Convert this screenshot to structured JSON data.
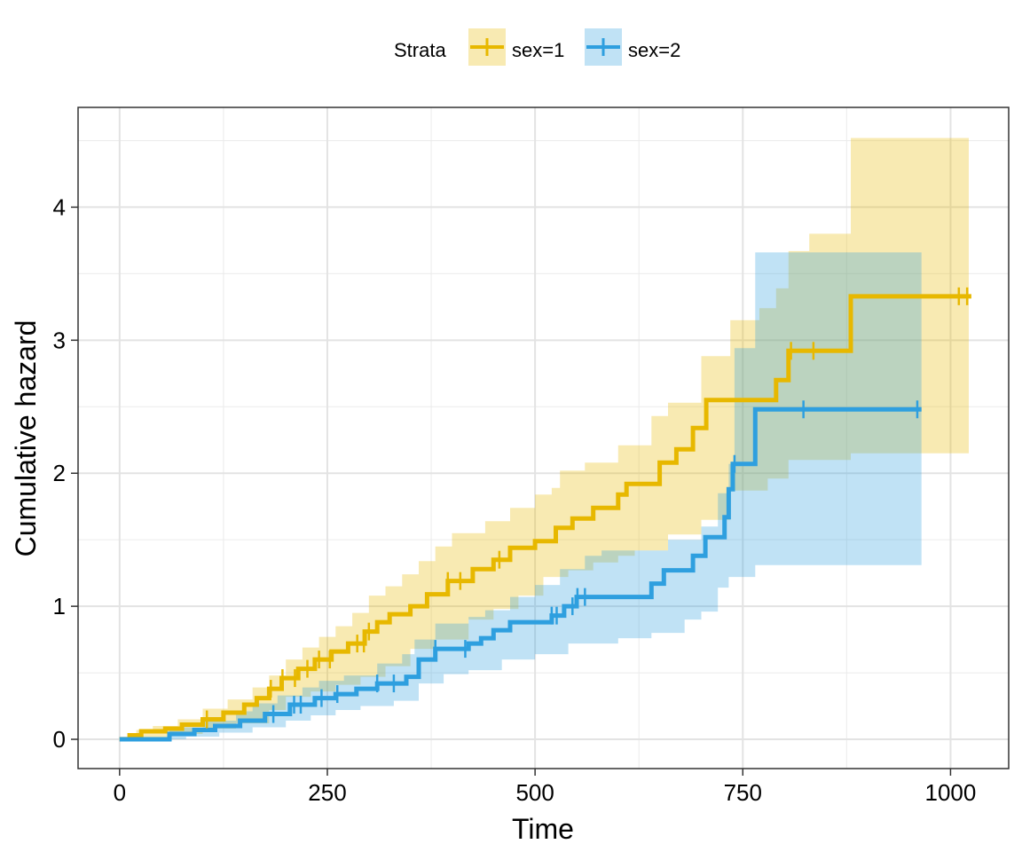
{
  "chart_data": {
    "type": "line",
    "title": "",
    "xlabel": "Time",
    "ylabel": "Cumulative hazard",
    "xlim": [
      -50,
      1070
    ],
    "ylim": [
      -0.22,
      4.75
    ],
    "xticks": [
      0,
      250,
      500,
      750,
      1000
    ],
    "yticks": [
      0,
      1,
      2,
      3,
      4
    ],
    "grid": true,
    "legend": {
      "title": "Strata",
      "position": "top",
      "entries": [
        "sex=1",
        "sex=2"
      ]
    },
    "colors": {
      "sex=1": "#E7B800",
      "sex=2": "#2E9FDF"
    },
    "series": [
      {
        "name": "sex=1",
        "step": [
          [
            0,
            0
          ],
          [
            12,
            0.03
          ],
          [
            26,
            0.06
          ],
          [
            55,
            0.08
          ],
          [
            75,
            0.11
          ],
          [
            100,
            0.15
          ],
          [
            125,
            0.2
          ],
          [
            150,
            0.26
          ],
          [
            165,
            0.31
          ],
          [
            180,
            0.38
          ],
          [
            195,
            0.46
          ],
          [
            215,
            0.53
          ],
          [
            235,
            0.6
          ],
          [
            255,
            0.66
          ],
          [
            275,
            0.72
          ],
          [
            295,
            0.81
          ],
          [
            310,
            0.88
          ],
          [
            325,
            0.94
          ],
          [
            350,
            1.0
          ],
          [
            370,
            1.09
          ],
          [
            395,
            1.19
          ],
          [
            425,
            1.28
          ],
          [
            450,
            1.35
          ],
          [
            470,
            1.44
          ],
          [
            500,
            1.49
          ],
          [
            520,
            1.49
          ],
          [
            525,
            1.59
          ],
          [
            545,
            1.66
          ],
          [
            570,
            1.74
          ],
          [
            600,
            1.84
          ],
          [
            610,
            1.92
          ],
          [
            650,
            2.08
          ],
          [
            670,
            2.18
          ],
          [
            690,
            2.34
          ],
          [
            706,
            2.55
          ],
          [
            735,
            2.55
          ],
          [
            790,
            2.7
          ],
          [
            800,
            2.7
          ],
          [
            805,
            2.92
          ],
          [
            880,
            3.33
          ],
          [
            1025,
            3.33
          ]
        ],
        "ci_upper": [
          [
            0,
            0.02
          ],
          [
            20,
            0.07
          ],
          [
            40,
            0.1
          ],
          [
            70,
            0.15
          ],
          [
            100,
            0.23
          ],
          [
            130,
            0.3
          ],
          [
            160,
            0.39
          ],
          [
            180,
            0.48
          ],
          [
            200,
            0.6
          ],
          [
            220,
            0.69
          ],
          [
            240,
            0.77
          ],
          [
            260,
            0.85
          ],
          [
            280,
            0.95
          ],
          [
            300,
            1.08
          ],
          [
            320,
            1.15
          ],
          [
            340,
            1.24
          ],
          [
            360,
            1.34
          ],
          [
            380,
            1.45
          ],
          [
            400,
            1.55
          ],
          [
            440,
            1.64
          ],
          [
            470,
            1.74
          ],
          [
            500,
            1.84
          ],
          [
            520,
            1.89
          ],
          [
            530,
            2.02
          ],
          [
            560,
            2.08
          ],
          [
            600,
            2.21
          ],
          [
            640,
            2.43
          ],
          [
            660,
            2.53
          ],
          [
            700,
            2.88
          ],
          [
            735,
            3.15
          ],
          [
            770,
            3.24
          ],
          [
            790,
            3.39
          ],
          [
            805,
            3.67
          ],
          [
            830,
            3.8
          ],
          [
            880,
            4.52
          ],
          [
            1022,
            4.52
          ]
        ],
        "ci_lower": [
          [
            0,
            0
          ],
          [
            30,
            0.01
          ],
          [
            60,
            0.04
          ],
          [
            100,
            0.08
          ],
          [
            140,
            0.12
          ],
          [
            180,
            0.22
          ],
          [
            200,
            0.32
          ],
          [
            230,
            0.36
          ],
          [
            260,
            0.41
          ],
          [
            290,
            0.47
          ],
          [
            320,
            0.55
          ],
          [
            350,
            0.68
          ],
          [
            380,
            0.75
          ],
          [
            420,
            0.9
          ],
          [
            450,
            0.98
          ],
          [
            480,
            1.08
          ],
          [
            510,
            1.22
          ],
          [
            540,
            1.27
          ],
          [
            570,
            1.33
          ],
          [
            600,
            1.38
          ],
          [
            620,
            1.42
          ],
          [
            660,
            1.54
          ],
          [
            700,
            1.65
          ],
          [
            735,
            1.87
          ],
          [
            760,
            1.87
          ],
          [
            780,
            1.96
          ],
          [
            800,
            1.96
          ],
          [
            805,
            2.1
          ],
          [
            880,
            2.15
          ],
          [
            1022,
            2.15
          ]
        ],
        "censor_times": [
          105,
          182,
          196,
          211,
          226,
          240,
          253,
          286,
          294,
          300,
          395,
          410,
          457,
          808,
          835,
          1010,
          1020
        ]
      },
      {
        "name": "sex=2",
        "step": [
          [
            0,
            0
          ],
          [
            60,
            0.04
          ],
          [
            90,
            0.07
          ],
          [
            115,
            0.1
          ],
          [
            145,
            0.14
          ],
          [
            175,
            0.19
          ],
          [
            205,
            0.26
          ],
          [
            235,
            0.31
          ],
          [
            260,
            0.34
          ],
          [
            285,
            0.38
          ],
          [
            310,
            0.42
          ],
          [
            345,
            0.47
          ],
          [
            360,
            0.6
          ],
          [
            380,
            0.68
          ],
          [
            420,
            0.72
          ],
          [
            435,
            0.76
          ],
          [
            450,
            0.82
          ],
          [
            470,
            0.88
          ],
          [
            520,
            0.93
          ],
          [
            535,
            1.0
          ],
          [
            550,
            1.07
          ],
          [
            640,
            1.17
          ],
          [
            655,
            1.27
          ],
          [
            690,
            1.38
          ],
          [
            705,
            1.52
          ],
          [
            728,
            1.67
          ],
          [
            733,
            1.88
          ],
          [
            738,
            2.07
          ],
          [
            765,
            2.48
          ],
          [
            965,
            2.48
          ]
        ],
        "ci_upper": [
          [
            0,
            0.01
          ],
          [
            60,
            0.09
          ],
          [
            100,
            0.14
          ],
          [
            140,
            0.21
          ],
          [
            160,
            0.27
          ],
          [
            190,
            0.33
          ],
          [
            220,
            0.39
          ],
          [
            240,
            0.44
          ],
          [
            270,
            0.48
          ],
          [
            310,
            0.57
          ],
          [
            340,
            0.64
          ],
          [
            355,
            0.75
          ],
          [
            380,
            0.87
          ],
          [
            420,
            0.92
          ],
          [
            440,
            0.97
          ],
          [
            470,
            1.07
          ],
          [
            500,
            1.16
          ],
          [
            530,
            1.28
          ],
          [
            560,
            1.38
          ],
          [
            580,
            1.42
          ],
          [
            640,
            1.42
          ],
          [
            660,
            1.5
          ],
          [
            700,
            1.6
          ],
          [
            720,
            1.85
          ],
          [
            733,
            2.07
          ],
          [
            740,
            2.94
          ],
          [
            765,
            3.66
          ],
          [
            965,
            3.66
          ]
        ],
        "ci_lower": [
          [
            0,
            0
          ],
          [
            80,
            0.02
          ],
          [
            120,
            0.05
          ],
          [
            160,
            0.09
          ],
          [
            200,
            0.14
          ],
          [
            230,
            0.18
          ],
          [
            260,
            0.22
          ],
          [
            290,
            0.25
          ],
          [
            330,
            0.29
          ],
          [
            360,
            0.42
          ],
          [
            390,
            0.49
          ],
          [
            420,
            0.52
          ],
          [
            460,
            0.6
          ],
          [
            500,
            0.64
          ],
          [
            540,
            0.72
          ],
          [
            600,
            0.76
          ],
          [
            640,
            0.8
          ],
          [
            680,
            0.9
          ],
          [
            700,
            0.96
          ],
          [
            720,
            1.14
          ],
          [
            733,
            1.22
          ],
          [
            765,
            1.31
          ],
          [
            965,
            1.31
          ]
        ],
        "censor_times": [
          185,
          210,
          218,
          243,
          262,
          310,
          330,
          380,
          416,
          520,
          526,
          545,
          551,
          560,
          740,
          823,
          960
        ]
      }
    ]
  }
}
